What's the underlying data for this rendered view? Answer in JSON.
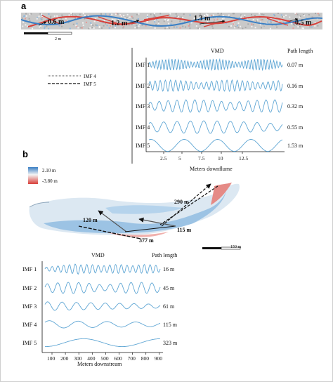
{
  "panel_a": {
    "letter": "a",
    "flume_labels": [
      "0.6 m",
      "1.2 m",
      "1.3 m",
      "0.5 m"
    ],
    "scale_label": "2 m",
    "legend": [
      "IMF 4",
      "IMF 5"
    ],
    "vmd_title": "VMD",
    "path_header": "Path length",
    "imf_labels": [
      "IMF 1",
      "IMF 2",
      "IMF 3",
      "IMF 4",
      "IMF 5"
    ],
    "path_lengths": [
      "0.07 m",
      "0.16 m",
      "0.32 m",
      "0.55 m",
      "1.53 m"
    ],
    "x_ticks": [
      "2.5",
      "5",
      "7.5",
      "10",
      "12.5"
    ],
    "x_label": "Meters downflume"
  },
  "panel_b": {
    "letter": "b",
    "colorbar_high": "2.10 m",
    "colorbar_low": "-3.80 m",
    "map_labels": [
      "290 m",
      "120 m",
      "115 m",
      "377 m"
    ],
    "scale_label": "150 m",
    "vmd_title": "VMD",
    "path_header": "Path length",
    "imf_labels": [
      "IMF 1",
      "IMF 2",
      "IMF 3",
      "IMF 4",
      "IMF 5"
    ],
    "path_lengths": [
      "16 m",
      "45 m",
      "61 m",
      "115 m",
      "323 m"
    ],
    "x_ticks": [
      "100",
      "200",
      "300",
      "400",
      "500",
      "600",
      "700",
      "800",
      "900"
    ],
    "x_label": "Meters downstream"
  },
  "colors": {
    "wave": "#5fa6d4",
    "blue": "#3a7fc4",
    "red": "#d8403a",
    "arrow": "#111111"
  }
}
